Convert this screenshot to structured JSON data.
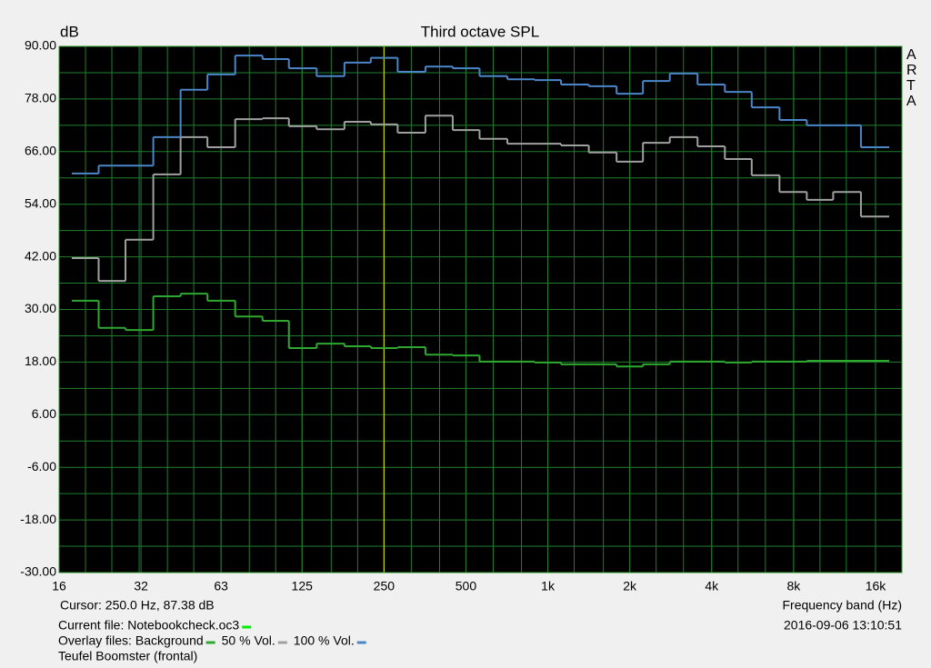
{
  "chart_data": {
    "type": "step",
    "title": "Third octave SPL",
    "y_label": "dB",
    "x_label": "Frequency band (Hz)",
    "brand": "ARTA",
    "cursor_text": "Cursor:   250.0 Hz, 87.38 dB",
    "cursor_x": 250,
    "cursor_color": "#e6e600",
    "timestamp": "2016-09-06  13:10:51",
    "current_file": {
      "label": "Current file: Notebookcheck.oc3",
      "color": "#00ee00"
    },
    "overlay_label": "Overlay files:",
    "note": "Teufel Boomster (frontal)",
    "x_log": true,
    "grid": true,
    "xlim": [
      16,
      20000
    ],
    "ylim": [
      -30,
      90
    ],
    "xticks": [
      16,
      32,
      63,
      125,
      250,
      500,
      {
        "value": 1000,
        "label": "1k"
      },
      {
        "value": 2000,
        "label": "2k"
      },
      {
        "value": 4000,
        "label": "4k"
      },
      {
        "value": 8000,
        "label": "8k"
      },
      {
        "value": 16000,
        "label": "16k"
      }
    ],
    "yticks": [
      {
        "value": 90,
        "label": "90.00"
      },
      {
        "value": 78,
        "label": "78.00"
      },
      {
        "value": 66,
        "label": "66.00"
      },
      {
        "value": 54,
        "label": "54.00"
      },
      {
        "value": 42,
        "label": "42.00"
      },
      {
        "value": 30,
        "label": "30.00"
      },
      {
        "value": 18,
        "label": "18.00"
      },
      {
        "value": 6,
        "label": "6.00"
      },
      {
        "value": -6,
        "label": "-6.00"
      },
      {
        "value": -18,
        "label": "-18.00"
      },
      {
        "value": -30,
        "label": "-30.00"
      }
    ],
    "yminor": [
      84,
      72,
      60,
      48,
      36,
      24,
      12,
      0,
      -12,
      -24
    ],
    "x": [
      20,
      25,
      31.5,
      40,
      50,
      63,
      80,
      100,
      125,
      160,
      200,
      250,
      315,
      400,
      500,
      630,
      800,
      1000,
      1250,
      1600,
      2000,
      2500,
      3150,
      4000,
      5000,
      6300,
      8000,
      10000,
      12500,
      16000
    ],
    "series": [
      {
        "name": "Background",
        "color": "#2ea82e",
        "values": [
          32.0,
          25.8,
          25.3,
          33.0,
          33.6,
          32.0,
          28.4,
          27.4,
          21.2,
          22.2,
          21.6,
          21.2,
          21.4,
          19.7,
          19.5,
          18.1,
          18.1,
          17.9,
          17.5,
          17.5,
          17.0,
          17.5,
          18.1,
          18.1,
          17.9,
          18.1,
          18.1,
          18.3,
          18.3,
          18.3
        ]
      },
      {
        "name": "50 % Vol.",
        "color": "#a0a0a0",
        "values": [
          41.7,
          36.5,
          45.9,
          60.8,
          69.3,
          67.0,
          73.4,
          73.6,
          71.8,
          71.1,
          72.8,
          72.2,
          70.3,
          74.2,
          70.9,
          68.9,
          67.8,
          67.8,
          67.4,
          65.8,
          63.7,
          68.0,
          69.3,
          67.2,
          64.3,
          60.6,
          56.8,
          55.0,
          56.8,
          51.2
        ]
      },
      {
        "name": "100 % Vol.",
        "color": "#4a86c8",
        "values": [
          61.0,
          62.8,
          62.8,
          69.3,
          80.1,
          83.6,
          87.9,
          87.1,
          85.0,
          83.2,
          86.3,
          87.38,
          84.2,
          85.4,
          85.0,
          83.2,
          82.5,
          82.3,
          81.3,
          80.9,
          79.2,
          82.1,
          83.8,
          81.3,
          79.6,
          76.1,
          73.2,
          72.0,
          72.0,
          67.0
        ]
      }
    ]
  }
}
